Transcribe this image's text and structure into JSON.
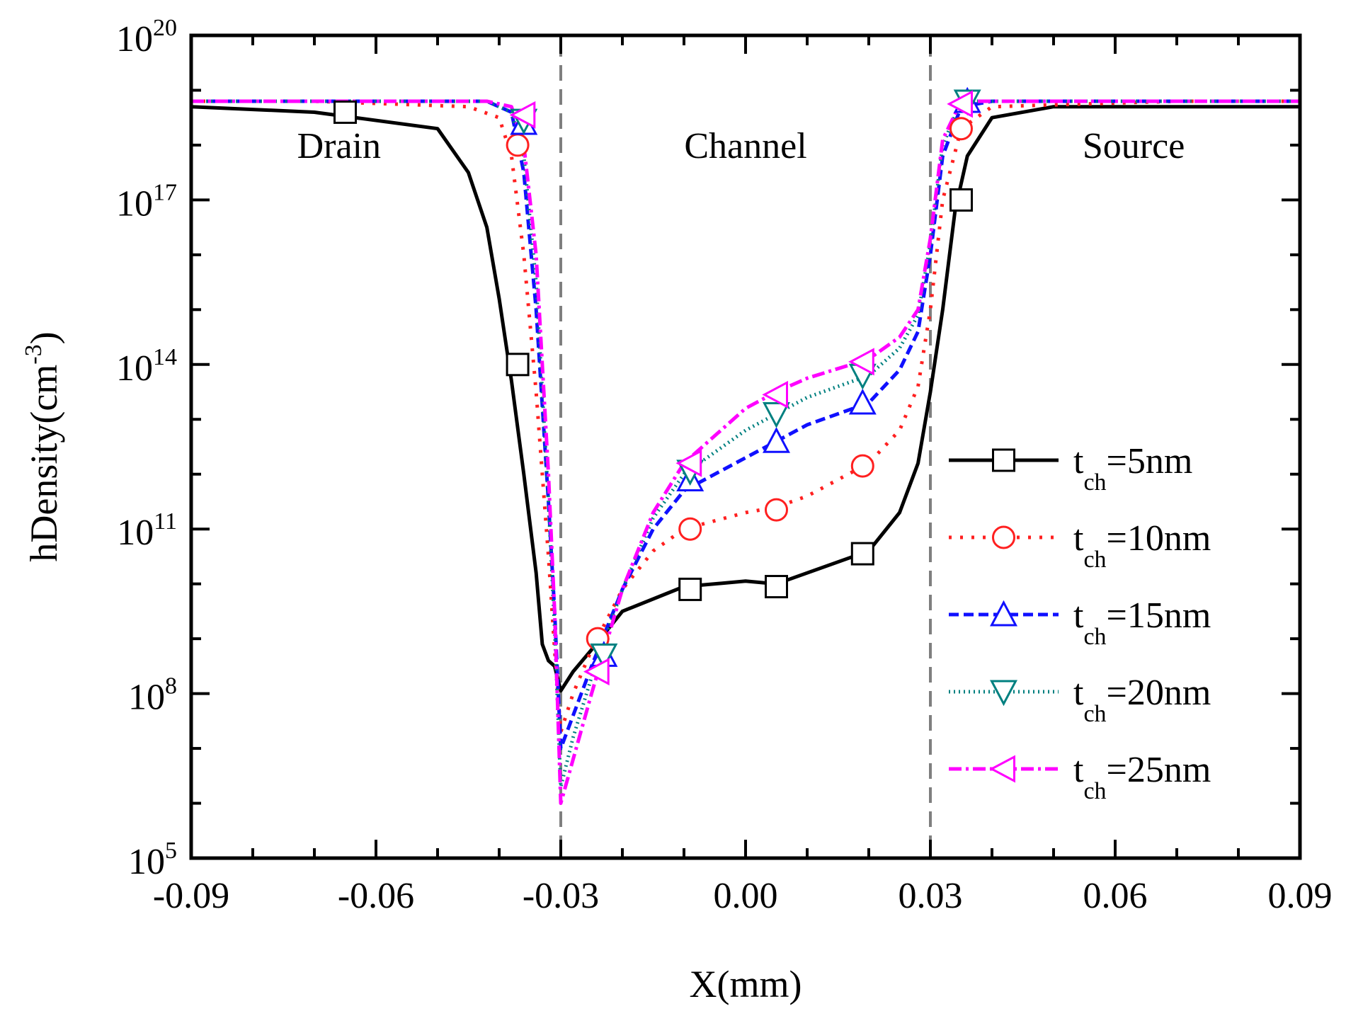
{
  "chart_data": {
    "type": "line",
    "x_label": "X(mm)",
    "y_label_main": "hDensity(cm",
    "y_label_sup": "-3",
    "y_label_close": ")",
    "x_range": [
      -0.09,
      0.09
    ],
    "y_log_range": [
      5,
      20
    ],
    "x_ticks": [
      {
        "value": -0.09,
        "label": "-0.09"
      },
      {
        "value": -0.06,
        "label": "-0.06"
      },
      {
        "value": -0.03,
        "label": "-0.03"
      },
      {
        "value": 0.0,
        "label": "0.00"
      },
      {
        "value": 0.03,
        "label": "0.03"
      },
      {
        "value": 0.06,
        "label": "0.06"
      },
      {
        "value": 0.09,
        "label": "0.09"
      }
    ],
    "y_ticks": [
      {
        "exp": 5,
        "base": "10",
        "sup": "5"
      },
      {
        "exp": 8,
        "base": "10",
        "sup": "8"
      },
      {
        "exp": 11,
        "base": "10",
        "sup": "11"
      },
      {
        "exp": 14,
        "base": "10",
        "sup": "14"
      },
      {
        "exp": 17,
        "base": "10",
        "sup": "17"
      },
      {
        "exp": 20,
        "base": "10",
        "sup": "20"
      }
    ],
    "region_lines": [
      -0.03,
      0.03
    ],
    "region_labels": [
      {
        "text": "Drain",
        "x": -0.066,
        "log_y": 18.0
      },
      {
        "text": "Channel",
        "x": 0.0,
        "log_y": 18.0
      },
      {
        "text": "Source",
        "x": 0.063,
        "log_y": 18.0
      }
    ],
    "legend": {
      "position": "right",
      "prefix": "t",
      "sub": "ch"
    },
    "series": [
      {
        "name": "t_ch=5nm",
        "suffix": "=5nm",
        "color": "#000000",
        "dash": "",
        "marker": "square",
        "x": [
          -0.09,
          -0.07,
          -0.05,
          -0.045,
          -0.042,
          -0.04,
          -0.038,
          -0.036,
          -0.034,
          -0.033,
          -0.032,
          -0.031,
          -0.03,
          -0.028,
          -0.025,
          -0.02,
          -0.01,
          0.0,
          0.005,
          0.01,
          0.02,
          0.025,
          0.028,
          0.03,
          0.032,
          0.034,
          0.036,
          0.04,
          0.05,
          0.07,
          0.09
        ],
        "y": [
          18.7,
          18.6,
          18.3,
          17.5,
          16.5,
          15.2,
          13.7,
          12.0,
          10.2,
          8.9,
          8.6,
          8.5,
          8.05,
          8.4,
          8.8,
          9.5,
          9.95,
          10.05,
          10.0,
          10.2,
          10.6,
          11.3,
          12.2,
          13.5,
          15.0,
          16.8,
          17.8,
          18.5,
          18.7,
          18.7,
          18.7
        ],
        "markers_x": [
          -0.065,
          -0.037,
          -0.009,
          0.005,
          0.019,
          0.035
        ],
        "markers_y": [
          18.6,
          14.0,
          9.9,
          9.95,
          10.55,
          17.0
        ]
      },
      {
        "name": "t_ch=10nm",
        "suffix": "=10nm",
        "color": "#ff2020",
        "dash": "4,12",
        "marker": "circle",
        "x": [
          -0.09,
          -0.07,
          -0.045,
          -0.04,
          -0.038,
          -0.036,
          -0.034,
          -0.032,
          -0.031,
          -0.03,
          -0.028,
          -0.025,
          -0.02,
          -0.015,
          -0.01,
          0.0,
          0.005,
          0.01,
          0.02,
          0.025,
          0.028,
          0.03,
          0.032,
          0.035,
          0.04,
          0.07,
          0.09
        ],
        "y": [
          18.8,
          18.8,
          18.7,
          18.5,
          17.8,
          16.0,
          13.5,
          10.5,
          8.8,
          7.3,
          8.0,
          8.8,
          9.9,
          10.6,
          11.0,
          11.3,
          11.4,
          11.6,
          12.2,
          12.8,
          13.6,
          15.0,
          17.0,
          18.3,
          18.7,
          18.8,
          18.8
        ],
        "markers_x": [
          -0.037,
          -0.024,
          -0.009,
          0.005,
          0.019,
          0.035
        ],
        "markers_y": [
          18.0,
          9.0,
          11.0,
          11.35,
          12.15,
          18.3
        ]
      },
      {
        "name": "t_ch=15nm",
        "suffix": "=15nm",
        "color": "#1010ff",
        "dash": "14,7",
        "marker": "triangle-up",
        "x": [
          -0.09,
          -0.07,
          -0.042,
          -0.038,
          -0.036,
          -0.034,
          -0.032,
          -0.031,
          -0.03,
          -0.028,
          -0.025,
          -0.02,
          -0.015,
          -0.01,
          0.0,
          0.005,
          0.01,
          0.02,
          0.025,
          0.028,
          0.03,
          0.032,
          0.035,
          0.04,
          0.07,
          0.09
        ],
        "y": [
          18.8,
          18.8,
          18.8,
          18.6,
          17.5,
          15.0,
          11.5,
          9.5,
          7.0,
          7.6,
          8.5,
          9.9,
          11.0,
          11.7,
          12.3,
          12.6,
          12.9,
          13.3,
          13.9,
          14.6,
          16.0,
          17.8,
          18.7,
          18.8,
          18.8,
          18.8
        ],
        "markers_x": [
          -0.036,
          -0.023,
          -0.009,
          0.005,
          0.019,
          0.036
        ],
        "markers_y": [
          18.4,
          8.7,
          11.9,
          12.6,
          13.3,
          18.8
        ]
      },
      {
        "name": "t_ch=20nm",
        "suffix": "=20nm",
        "color": "#008080",
        "dash": "2,5",
        "marker": "triangle-down",
        "x": [
          -0.09,
          -0.07,
          -0.042,
          -0.038,
          -0.036,
          -0.034,
          -0.032,
          -0.031,
          -0.03,
          -0.028,
          -0.025,
          -0.02,
          -0.015,
          -0.01,
          0.0,
          0.005,
          0.01,
          0.02,
          0.025,
          0.028,
          0.03,
          0.032,
          0.035,
          0.04,
          0.07,
          0.09
        ],
        "y": [
          18.8,
          18.8,
          18.8,
          18.6,
          17.8,
          15.5,
          11.5,
          9.2,
          6.3,
          7.2,
          8.3,
          9.9,
          11.2,
          12.0,
          12.8,
          13.1,
          13.4,
          13.8,
          14.3,
          14.9,
          16.2,
          18.0,
          18.8,
          18.8,
          18.8,
          18.8
        ],
        "markers_x": [
          -0.036,
          -0.023,
          -0.009,
          0.005,
          0.019,
          0.036
        ],
        "markers_y": [
          18.45,
          8.7,
          12.05,
          13.1,
          13.8,
          18.8
        ]
      },
      {
        "name": "t_ch=25nm",
        "suffix": "=25nm",
        "color": "#ff00ff",
        "dash": "18,6,4,6",
        "marker": "triangle-left",
        "x": [
          -0.09,
          -0.07,
          -0.042,
          -0.038,
          -0.036,
          -0.034,
          -0.032,
          -0.031,
          -0.03,
          -0.028,
          -0.025,
          -0.02,
          -0.015,
          -0.01,
          0.0,
          0.005,
          0.01,
          0.02,
          0.025,
          0.028,
          0.03,
          0.032,
          0.035,
          0.04,
          0.07,
          0.09
        ],
        "y": [
          18.8,
          18.8,
          18.8,
          18.7,
          18.0,
          16.0,
          12.0,
          9.5,
          6.0,
          6.8,
          8.0,
          9.9,
          11.3,
          12.2,
          13.2,
          13.5,
          13.75,
          14.1,
          14.5,
          15.0,
          16.3,
          18.1,
          18.8,
          18.8,
          18.8,
          18.8
        ],
        "markers_x": [
          -0.036,
          -0.024,
          -0.009,
          0.005,
          0.019,
          0.035
        ],
        "markers_y": [
          18.55,
          8.4,
          12.2,
          13.45,
          14.05,
          18.75
        ]
      }
    ]
  }
}
